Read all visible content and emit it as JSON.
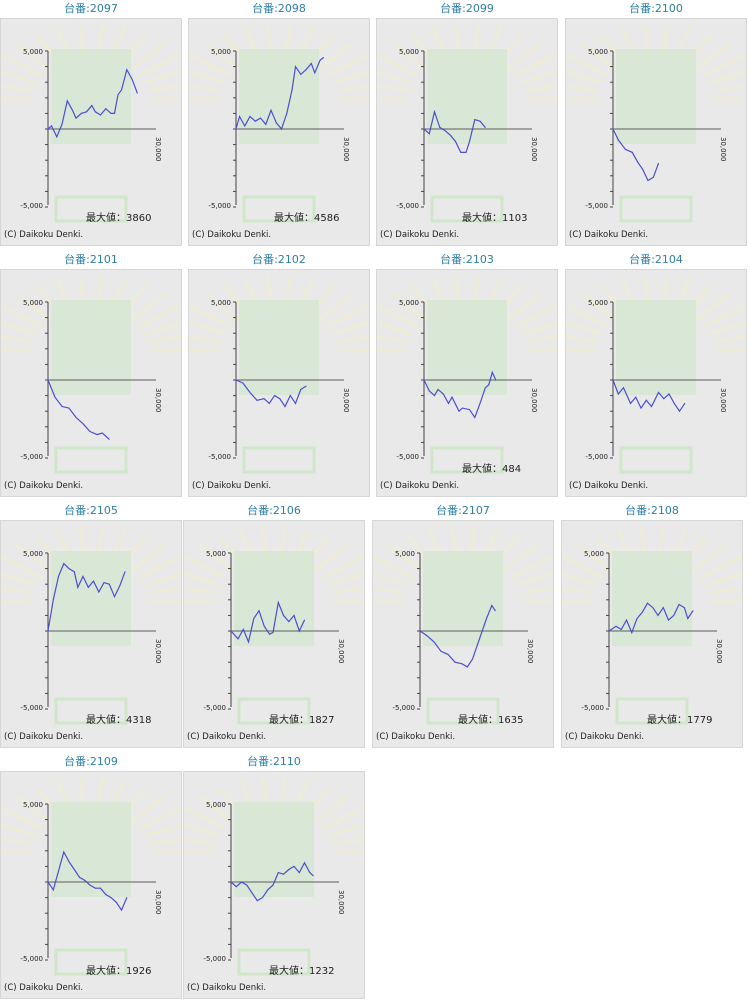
{
  "copyright": "(C) Daikoku Denki.",
  "chart_data": [
    {
      "type": "line",
      "title": "台番:2097",
      "max_label": "最大値：3860",
      "ylim": [
        -5000,
        5000
      ],
      "xlim": [
        0,
        30000
      ],
      "yticks": [
        "5,000",
        "-5,000"
      ],
      "xticks": [
        "30,000"
      ],
      "x": [
        0,
        1000,
        2500,
        4000,
        5500,
        7000,
        8000,
        9500,
        11000,
        12500,
        13500,
        15000,
        16500,
        18000,
        19000,
        20000,
        21000,
        22500,
        24000,
        25500
      ],
      "y": [
        0,
        200,
        -500,
        300,
        1800,
        1200,
        700,
        1000,
        1100,
        1500,
        1100,
        900,
        1300,
        1000,
        1000,
        2200,
        2500,
        3800,
        3200,
        2300
      ]
    },
    {
      "type": "line",
      "title": "台番:2098",
      "max_label": "最大値：4586",
      "ylim": [
        -5000,
        5000
      ],
      "xlim": [
        0,
        30000
      ],
      "yticks": [
        "5,000",
        "-5,000"
      ],
      "xticks": [
        "30,000"
      ],
      "x": [
        0,
        1000,
        2500,
        4000,
        5500,
        7000,
        8500,
        10000,
        11500,
        13000,
        14500,
        16000,
        17000,
        18500,
        20000,
        21500,
        22500,
        24000,
        25000
      ],
      "y": [
        0,
        800,
        200,
        800,
        500,
        700,
        300,
        1200,
        400,
        0,
        1000,
        2500,
        4000,
        3500,
        3800,
        4200,
        3600,
        4400,
        4586
      ]
    },
    {
      "type": "line",
      "title": "台番:2099",
      "max_label": "最大値：1103",
      "ylim": [
        -5000,
        5000
      ],
      "xlim": [
        0,
        30000
      ],
      "yticks": [
        "5,000",
        "-5,000"
      ],
      "xticks": [
        "30,000"
      ],
      "x": [
        0,
        1500,
        3000,
        4500,
        6000,
        7500,
        9000,
        10500,
        12000,
        13000,
        14500,
        16000,
        17500
      ],
      "y": [
        0,
        -300,
        1103,
        100,
        -100,
        -400,
        -800,
        -1500,
        -1500,
        -800,
        600,
        500,
        100
      ]
    },
    {
      "type": "line",
      "title": "台番:2100",
      "max_label": "",
      "ylim": [
        -5000,
        5000
      ],
      "xlim": [
        0,
        30000
      ],
      "yticks": [
        "5,000",
        "-5,000"
      ],
      "xticks": [
        "30,000"
      ],
      "x": [
        0,
        1500,
        3500,
        5500,
        7000,
        8500,
        10000,
        11500,
        13000
      ],
      "y": [
        0,
        -700,
        -1300,
        -1500,
        -2100,
        -2600,
        -3300,
        -3100,
        -2200
      ]
    },
    {
      "type": "line",
      "title": "台番:2101",
      "max_label": "",
      "ylim": [
        -5000,
        5000
      ],
      "xlim": [
        0,
        30000
      ],
      "yticks": [
        "5,000",
        "-5,000"
      ],
      "xticks": [
        "30,000"
      ],
      "x": [
        0,
        2000,
        4000,
        6000,
        8000,
        10000,
        12000,
        14000,
        15500,
        17500
      ],
      "y": [
        0,
        -1100,
        -1700,
        -1800,
        -2400,
        -2800,
        -3300,
        -3500,
        -3400,
        -3800
      ]
    },
    {
      "type": "line",
      "title": "台番:2102",
      "max_label": "",
      "ylim": [
        -5000,
        5000
      ],
      "xlim": [
        0,
        30000
      ],
      "yticks": [
        "5,000",
        "-5,000"
      ],
      "xticks": [
        "30,000"
      ],
      "x": [
        0,
        2000,
        4000,
        6000,
        8000,
        9500,
        11000,
        12500,
        14000,
        15500,
        17000,
        18500,
        20000
      ],
      "y": [
        0,
        -200,
        -800,
        -1300,
        -1200,
        -1500,
        -1000,
        -1200,
        -1700,
        -1000,
        -1500,
        -600,
        -400
      ]
    },
    {
      "type": "line",
      "title": "台番:2103",
      "max_label": "最大値：484",
      "ylim": [
        -5000,
        5000
      ],
      "xlim": [
        0,
        30000
      ],
      "yticks": [
        "5,000",
        "-5,000"
      ],
      "xticks": [
        "30,000"
      ],
      "x": [
        0,
        1500,
        3000,
        4000,
        5500,
        7000,
        8000,
        10000,
        11000,
        13000,
        14500,
        16000,
        17500,
        18500,
        19500,
        20500
      ],
      "y": [
        0,
        -700,
        -1000,
        -600,
        -900,
        -1500,
        -1100,
        -2000,
        -1800,
        -1900,
        -2400,
        -1500,
        -500,
        -300,
        484,
        0
      ]
    },
    {
      "type": "line",
      "title": "台番:2104",
      "max_label": "",
      "ylim": [
        -5000,
        5000
      ],
      "xlim": [
        0,
        30000
      ],
      "yticks": [
        "5,000",
        "-5,000"
      ],
      "xticks": [
        "30,000"
      ],
      "x": [
        0,
        1500,
        3000,
        5000,
        6500,
        8000,
        9500,
        11000,
        13000,
        14500,
        16000,
        17500,
        19000,
        20500
      ],
      "y": [
        0,
        -900,
        -500,
        -1500,
        -1100,
        -1800,
        -1300,
        -1700,
        -800,
        -1200,
        -900,
        -1500,
        -2000,
        -1500
      ]
    },
    {
      "type": "line",
      "title": "台番:2105",
      "max_label": "最大値：4318",
      "ylim": [
        -5000,
        5000
      ],
      "xlim": [
        0,
        30000
      ],
      "yticks": [
        "5,000",
        "-5,000"
      ],
      "xticks": [
        "30,000"
      ],
      "x": [
        0,
        1500,
        3000,
        4500,
        6000,
        7500,
        8500,
        10000,
        11500,
        13000,
        14500,
        16000,
        17500,
        19000,
        20500,
        22000
      ],
      "y": [
        0,
        2000,
        3500,
        4318,
        4000,
        3800,
        2800,
        3500,
        2800,
        3200,
        2500,
        3100,
        3000,
        2200,
        2900,
        3800
      ]
    },
    {
      "type": "line",
      "title": "台番:2106",
      "max_label": "最大値：1827",
      "ylim": [
        -5000,
        5000
      ],
      "xlim": [
        0,
        30000
      ],
      "yticks": [
        "5,000",
        "-5,000"
      ],
      "xticks": [
        "30,000"
      ],
      "x": [
        0,
        2000,
        3500,
        5000,
        6500,
        8000,
        9500,
        11000,
        12000,
        13500,
        15000,
        16500,
        18000,
        19500,
        21000
      ],
      "y": [
        0,
        -500,
        100,
        -700,
        800,
        1300,
        300,
        -200,
        -100,
        1827,
        1000,
        600,
        1000,
        0,
        700
      ]
    },
    {
      "type": "line",
      "title": "台番:2107",
      "max_label": "最大値：1635",
      "ylim": [
        -5000,
        5000
      ],
      "xlim": [
        0,
        30000
      ],
      "yticks": [
        "5,000",
        "-5,000"
      ],
      "xticks": [
        "30,000"
      ],
      "x": [
        0,
        2000,
        4000,
        6000,
        8000,
        10000,
        12000,
        13500,
        15000,
        17000,
        19000,
        20500,
        21500
      ],
      "y": [
        0,
        -300,
        -700,
        -1300,
        -1500,
        -2000,
        -2100,
        -2300,
        -1800,
        -500,
        800,
        1635,
        1300
      ]
    },
    {
      "type": "line",
      "title": "台番:2108",
      "max_label": "最大値：1779",
      "ylim": [
        -5000,
        5000
      ],
      "xlim": [
        0,
        30000
      ],
      "yticks": [
        "5,000",
        "-5,000"
      ],
      "xticks": [
        "30,000"
      ],
      "x": [
        0,
        2000,
        3500,
        5000,
        6500,
        8000,
        9500,
        11000,
        12500,
        14000,
        15500,
        17000,
        18500,
        20000,
        21500,
        22500,
        24000
      ],
      "y": [
        0,
        300,
        100,
        700,
        -100,
        800,
        1200,
        1779,
        1500,
        1000,
        1500,
        700,
        1000,
        1700,
        1500,
        800,
        1300
      ]
    },
    {
      "type": "line",
      "title": "台番:2109",
      "max_label": "最大値：1926",
      "ylim": [
        -5000,
        5000
      ],
      "xlim": [
        0,
        30000
      ],
      "yticks": [
        "5,000",
        "-5,000"
      ],
      "xticks": [
        "30,000"
      ],
      "x": [
        0,
        1500,
        3000,
        4500,
        6000,
        7500,
        9000,
        10500,
        12000,
        13500,
        15000,
        16500,
        18000,
        19500,
        21000,
        22500
      ],
      "y": [
        0,
        -500,
        700,
        1926,
        1300,
        800,
        300,
        100,
        -200,
        -400,
        -400,
        -800,
        -1000,
        -1300,
        -1800,
        -1000
      ]
    },
    {
      "type": "line",
      "title": "台番:2110",
      "max_label": "最大値：1232",
      "ylim": [
        -5000,
        5000
      ],
      "xlim": [
        0,
        30000
      ],
      "yticks": [
        "5,000",
        "-5,000"
      ],
      "xticks": [
        "30,000"
      ],
      "x": [
        0,
        1500,
        3000,
        4500,
        6000,
        7500,
        9000,
        10500,
        12000,
        13500,
        15000,
        16500,
        18000,
        19500,
        21000,
        22500,
        23500
      ],
      "y": [
        0,
        -300,
        0,
        -200,
        -700,
        -1200,
        -1000,
        -500,
        -200,
        600,
        500,
        800,
        1000,
        600,
        1232,
        600,
        400
      ]
    }
  ],
  "colors": {
    "line": "#4a4fd0",
    "title": "#2f7fa3",
    "axis": "#555555"
  }
}
